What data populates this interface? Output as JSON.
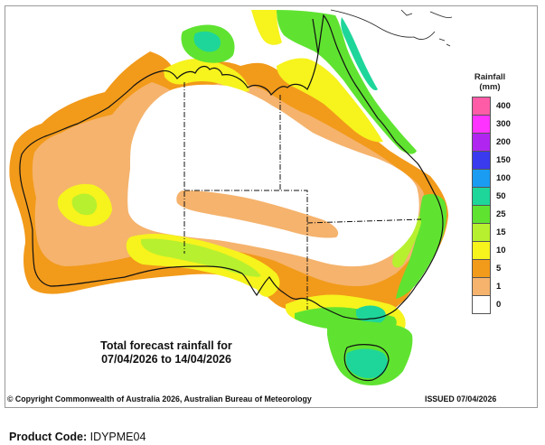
{
  "map": {
    "forecast_title_line1": "Total forecast rainfall for",
    "forecast_title_line2": "07/04/2026 to 14/04/2026",
    "copyright": "© Copyright Commonwealth of Australia 2026, Australian Bureau of Meteorology",
    "issued": "ISSUED 07/04/2026"
  },
  "legend": {
    "title_line1": "Rainfall",
    "title_line2": "(mm)",
    "levels": [
      {
        "label": "400",
        "color": "#ff5ca8"
      },
      {
        "label": "300",
        "color": "#ff33ff"
      },
      {
        "label": "200",
        "color": "#b026f0"
      },
      {
        "label": "150",
        "color": "#3a3aee"
      },
      {
        "label": "100",
        "color": "#1a9cf2"
      },
      {
        "label": "50",
        "color": "#1ed69a"
      },
      {
        "label": "25",
        "color": "#5fe330"
      },
      {
        "label": "15",
        "color": "#b7f02e"
      },
      {
        "label": "10",
        "color": "#f6f31d"
      },
      {
        "label": "5",
        "color": "#f29a1a"
      },
      {
        "label": "1",
        "color": "#f5b36d"
      },
      {
        "label": "0",
        "color": "#ffffff"
      }
    ]
  },
  "footer": {
    "product_code_label": "Product Code:",
    "product_code_value": "IDYPME04"
  }
}
